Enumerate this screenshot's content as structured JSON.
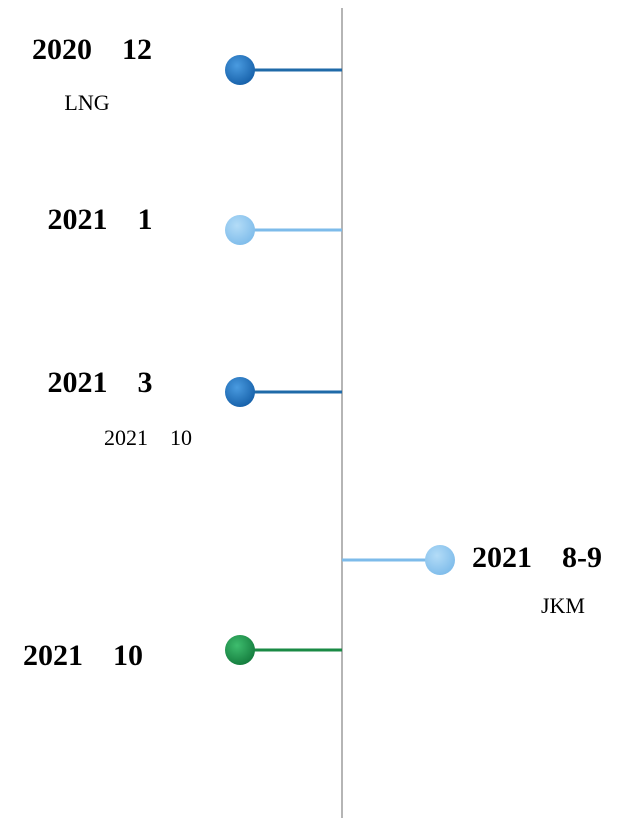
{
  "events": [
    {
      "title": "2020    12",
      "subtitle": "LNG"
    },
    {
      "title": "2021    1"
    },
    {
      "title": "2021    3",
      "subtitle": "2021    10"
    },
    {
      "title": "2021    8-9",
      "subtitle": "JKM"
    },
    {
      "title": "2021    10"
    }
  ]
}
